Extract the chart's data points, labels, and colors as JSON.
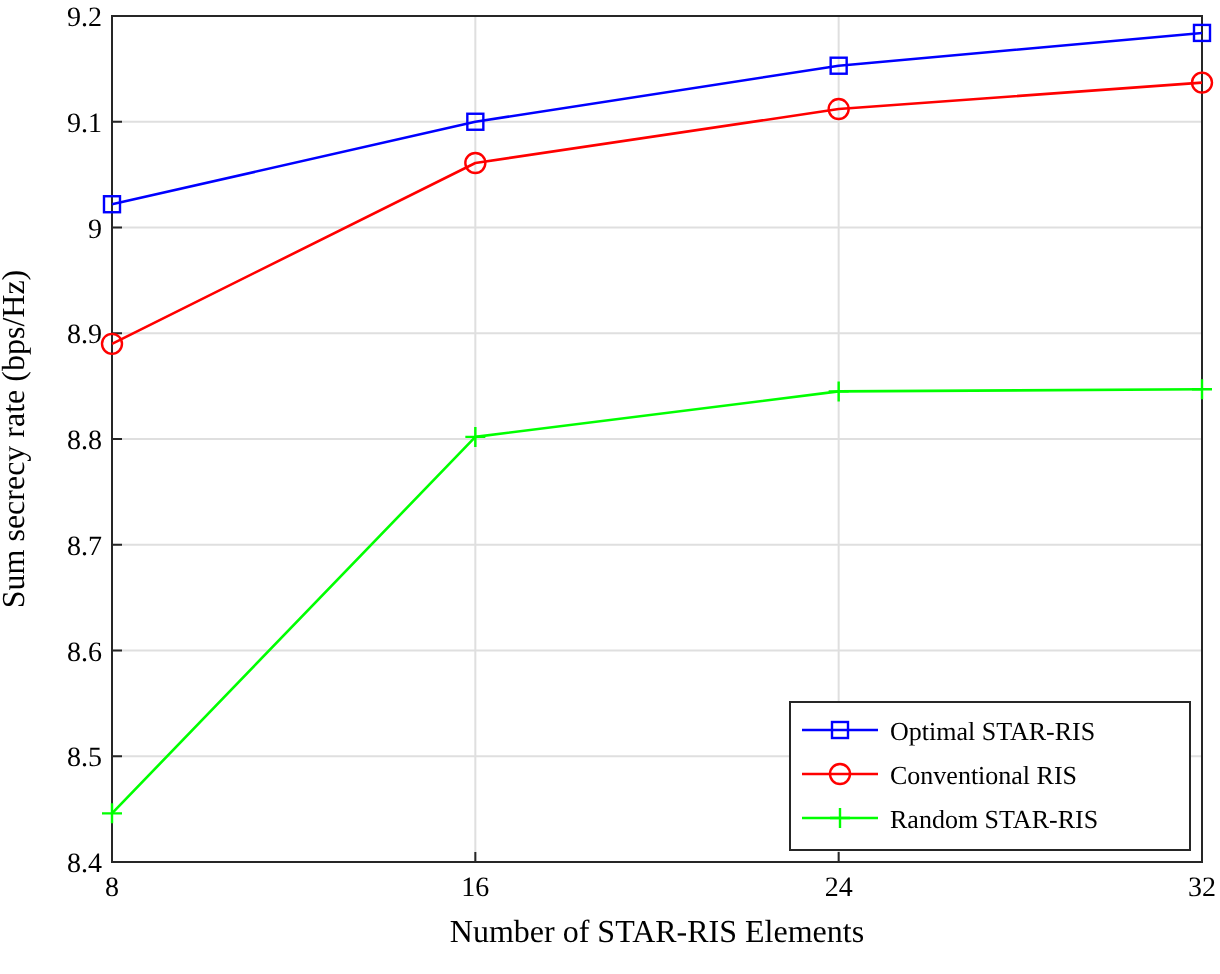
{
  "chart_data": {
    "type": "line",
    "xlabel": "Number of STAR-RIS Elements",
    "ylabel": "Sum secrecy rate (bps/Hz)",
    "x": [
      8,
      16,
      24,
      32
    ],
    "xlim": [
      8,
      32
    ],
    "xticks": [
      8,
      16,
      24,
      32
    ],
    "ylim": [
      8.4,
      9.2
    ],
    "yticks": [
      8.4,
      8.5,
      8.6,
      8.7,
      8.8,
      8.9,
      {
        "value": 9,
        "label": "9"
      },
      9.1,
      9.2
    ],
    "grid": true,
    "legend": "bottom right",
    "series": [
      {
        "name": "Optimal STAR-RIS",
        "color": "#0000ff",
        "marker": "square",
        "values": [
          9.022,
          9.1,
          9.153,
          9.184
        ]
      },
      {
        "name": "Conventional RIS",
        "color": "#ff0000",
        "marker": "circle",
        "values": [
          8.89,
          9.061,
          9.112,
          9.137
        ]
      },
      {
        "name": "Random STAR-RIS",
        "color": "#00ff00",
        "marker": "cross",
        "values": [
          8.446,
          8.802,
          8.845,
          8.847
        ]
      }
    ]
  }
}
